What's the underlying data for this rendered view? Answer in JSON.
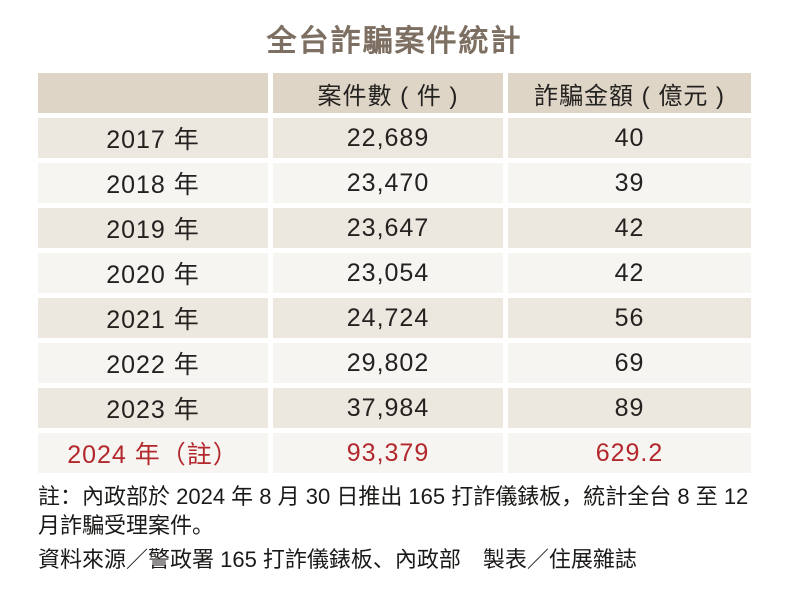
{
  "title": "全台詐騙案件統計",
  "table": {
    "headers": [
      "",
      "案件數 ( 件 )",
      "詐騙金額 ( 億元 )"
    ],
    "rows": [
      {
        "year": "2017 年",
        "cases": "22,689",
        "amount": "40"
      },
      {
        "year": "2018 年",
        "cases": "23,470",
        "amount": "39"
      },
      {
        "year": "2019 年",
        "cases": "23,647",
        "amount": "42"
      },
      {
        "year": "2020 年",
        "cases": "23,054",
        "amount": "42"
      },
      {
        "year": "2021 年",
        "cases": "24,724",
        "amount": "56"
      },
      {
        "year": "2022 年",
        "cases": "29,802",
        "amount": "69"
      },
      {
        "year": "2023 年",
        "cases": "37,984",
        "amount": "89"
      },
      {
        "year": "2024 年（註）",
        "cases": "93,379",
        "amount": "629.2",
        "highlight": true
      }
    ]
  },
  "footnote": "註：內政部於 2024 年 8 月 30 日推出 165 打詐儀錶板，統計全台 8 至 12 月詐騙受理案件。",
  "source": "資料來源／警政署 165 打詐儀錶板、內政部　製表／住展雜誌",
  "colors": {
    "header_bg": "#ded5c7",
    "row_odd_bg": "#ece7df",
    "row_even_bg": "#f7f5f1",
    "highlight_text": "#b2282d",
    "title_text": "#7d6f62",
    "body_text": "#242220"
  },
  "chart_data": {
    "type": "table",
    "title": "全台詐騙案件統計",
    "categories": [
      "2017",
      "2018",
      "2019",
      "2020",
      "2021",
      "2022",
      "2023",
      "2024"
    ],
    "series": [
      {
        "name": "案件數 ( 件 )",
        "values": [
          22689,
          23470,
          23647,
          23054,
          24724,
          29802,
          37984,
          93379
        ]
      },
      {
        "name": "詐騙金額 ( 億元 )",
        "values": [
          40,
          39,
          42,
          42,
          56,
          69,
          89,
          629.2
        ]
      }
    ],
    "annotations": [
      "註：內政部於 2024 年 8 月 30 日推出 165 打詐儀錶板，統計全台 8 至 12 月詐騙受理案件。",
      "資料來源／警政署 165 打詐儀錶板、內政部　製表／住展雜誌"
    ],
    "layout": {
      "highlight_row": "2024",
      "highlight_color": "#b2282d"
    }
  }
}
